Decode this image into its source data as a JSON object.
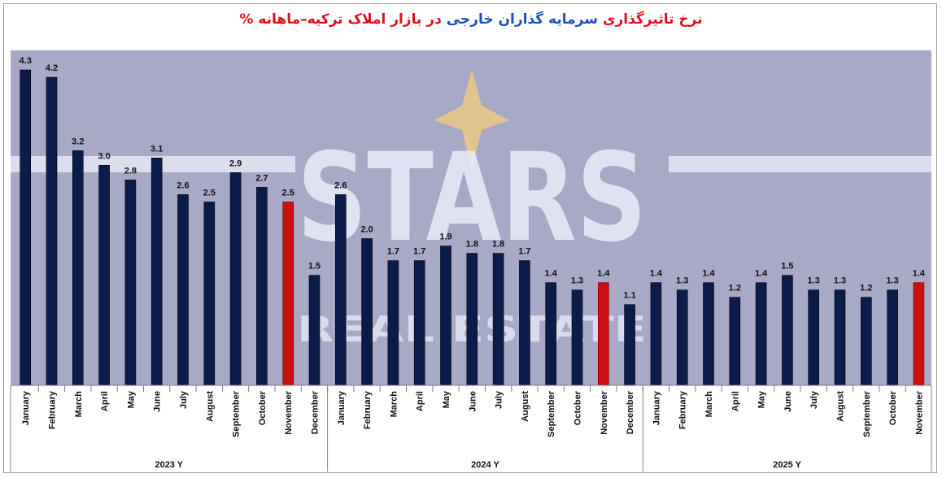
{
  "title": {
    "segments": [
      {
        "text": "نرخ تاثیرگذاری ",
        "color": "#e0101a"
      },
      {
        "text": "سرمایه گذاران خارجی",
        "color": "#1b4fbf"
      },
      {
        "text": " در بازار  املاک ترکیه–ماهانه %",
        "color": "#e0101a"
      }
    ]
  },
  "watermark": {
    "logo_text": "STARS",
    "sub_text": "REAL ESTATE"
  },
  "colors": {
    "bar": "#0c1c4a",
    "highlight": "#cc1010",
    "plot_background": "#a7a9c6",
    "watermark": "#eef0fb",
    "star": "#e8c78a"
  },
  "chart_data": {
    "type": "bar",
    "title": "نرخ تاثیرگذاری سرمایه گذاران خارجی در بازار  املاک ترکیه–ماهانه %",
    "xlabel": "",
    "ylabel": "",
    "ylim": [
      0,
      4.3
    ],
    "grid": false,
    "legend": "none",
    "groups": [
      {
        "label": "2023  Y",
        "categories": [
          "January",
          "February",
          "March",
          "April",
          "May",
          "June",
          "July",
          "August",
          "September",
          "October",
          "November",
          "December"
        ],
        "values": [
          4.3,
          4.2,
          3.2,
          3.0,
          2.8,
          3.1,
          2.6,
          2.5,
          2.9,
          2.7,
          2.5,
          1.5
        ],
        "value_labels": [
          "4.3",
          "4.2",
          "3.2",
          "3.0",
          "2.8",
          "3.1",
          "2.6",
          "2.5",
          "2.9",
          "2.7",
          "2.5",
          "1.5"
        ],
        "highlight": [
          10
        ]
      },
      {
        "label": "2024  Y",
        "categories": [
          "January",
          "February",
          "March",
          "April",
          "May",
          "June",
          "July",
          "August",
          "September",
          "October",
          "November",
          "December"
        ],
        "values": [
          2.6,
          2.0,
          1.7,
          1.7,
          1.9,
          1.8,
          1.8,
          1.7,
          1.4,
          1.3,
          1.4,
          1.1
        ],
        "value_labels": [
          "2.6",
          "2.0",
          "1.7",
          "1.7",
          "1.9",
          "1.8",
          "1.8",
          "1.7",
          "1.4",
          "1.3",
          "1.4",
          "1.1"
        ],
        "highlight": [
          10
        ]
      },
      {
        "label": "2025  Y",
        "categories": [
          "January",
          "February",
          "March",
          "April",
          "May",
          "June",
          "July",
          "August",
          "September",
          "October",
          "November"
        ],
        "values": [
          1.4,
          1.3,
          1.4,
          1.2,
          1.4,
          1.5,
          1.3,
          1.3,
          1.2,
          1.3,
          1.4
        ],
        "value_labels": [
          "1.4",
          "1.3",
          "1.4",
          "1.2",
          "1.4",
          "1.5",
          "1.3",
          "1.3",
          "1.2",
          "1.3",
          "1.4"
        ],
        "highlight": [
          10
        ]
      }
    ]
  }
}
